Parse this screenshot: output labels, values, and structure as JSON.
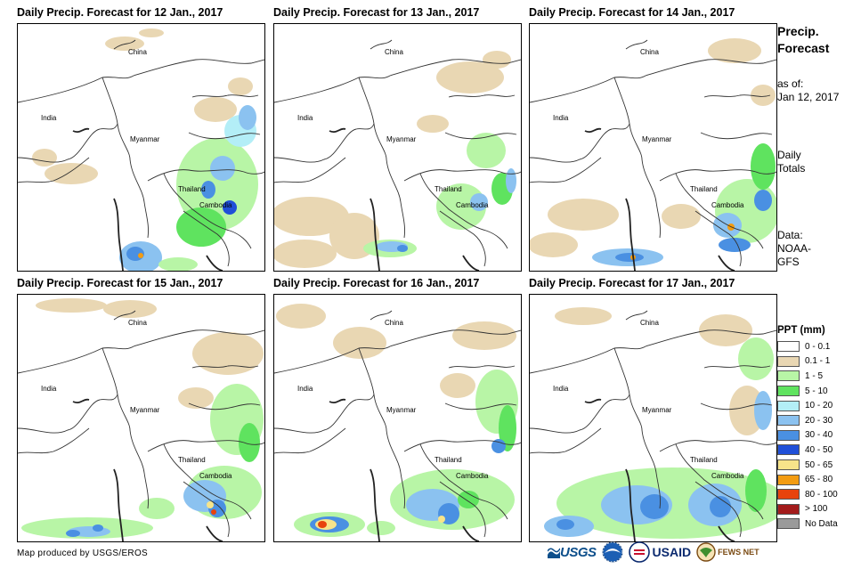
{
  "panels": [
    {
      "title": "Daily Precip. Forecast for 12 Jan., 2017"
    },
    {
      "title": "Daily Precip. Forecast for 13 Jan., 2017"
    },
    {
      "title": "Daily Precip. Forecast for 14 Jan., 2017"
    },
    {
      "title": "Daily Precip. Forecast for 15 Jan., 2017"
    },
    {
      "title": "Daily Precip. Forecast for 16 Jan., 2017"
    },
    {
      "title": "Daily Precip. Forecast for 17 Jan., 2017"
    }
  ],
  "map_labels": {
    "china": "China",
    "india": "India",
    "myanmar": "Myanmar",
    "thailand": "Thailand",
    "cambodia": "Cambodia"
  },
  "sidebar": {
    "title_line1": "Precip.",
    "title_line2": "Forecast",
    "asof_label": "as of:",
    "asof_date": "Jan 12, 2017",
    "totals_line1": "Daily",
    "totals_line2": "Totals",
    "data_line1": "Data:",
    "data_line2": "NOAA-",
    "data_line3": "GFS"
  },
  "legend": {
    "title": "PPT (mm)",
    "items": [
      {
        "label": "0 - 0.1",
        "color": "#ffffff"
      },
      {
        "label": "0.1 - 1",
        "color": "#e9d7b3"
      },
      {
        "label": "1 - 5",
        "color": "#b8f5a6"
      },
      {
        "label": "5 - 10",
        "color": "#5fe35f"
      },
      {
        "label": "10 - 20",
        "color": "#b3eef7"
      },
      {
        "label": "20 - 30",
        "color": "#8bc2f0"
      },
      {
        "label": "30 - 40",
        "color": "#4a90e2"
      },
      {
        "label": "40 - 50",
        "color": "#1f4fd8"
      },
      {
        "label": "50 - 65",
        "color": "#f7e48a"
      },
      {
        "label": "65 - 80",
        "color": "#f39c12"
      },
      {
        "label": "80 - 100",
        "color": "#e8430c"
      },
      {
        "label": "> 100",
        "color": "#a31b1b"
      },
      {
        "label": "No Data",
        "color": "#9a9a9a"
      }
    ]
  },
  "footer": {
    "credit": "Map produced by USGS/EROS",
    "usgs": "USGS",
    "usaid": "USAID",
    "fews": "FEWS NET"
  }
}
